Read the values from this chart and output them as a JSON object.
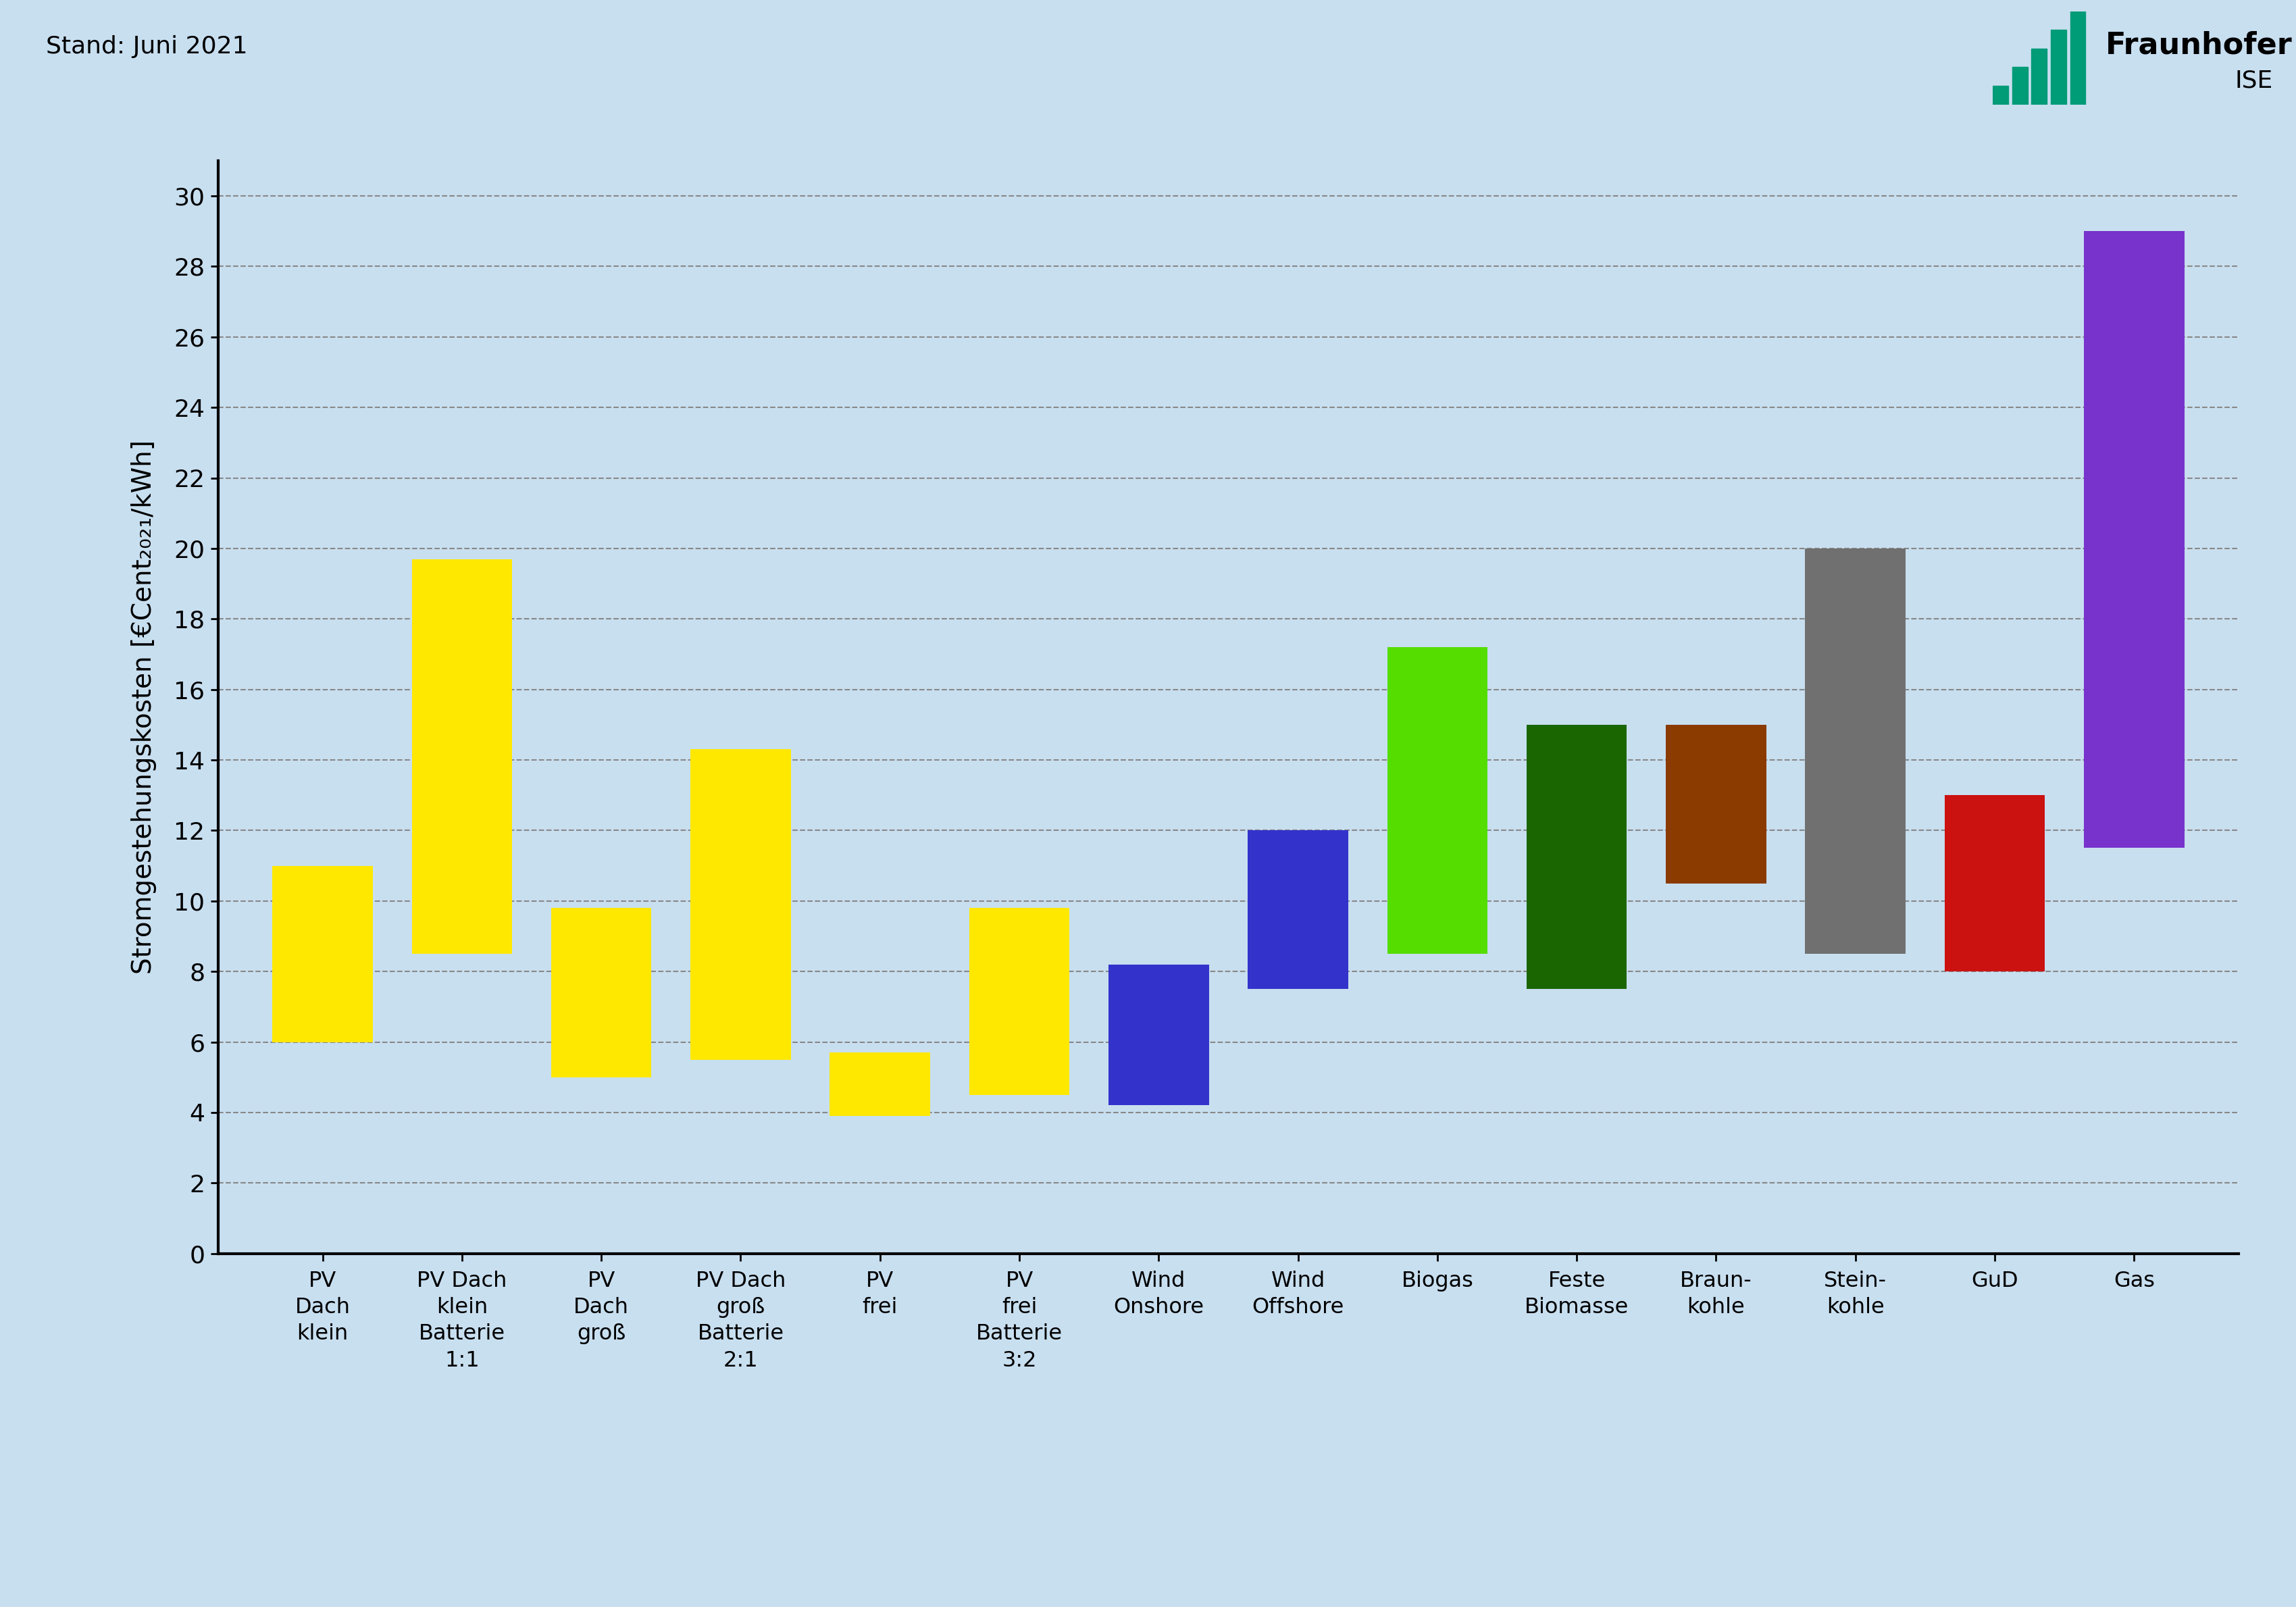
{
  "categories": [
    "PV\nDach\nklein",
    "PV Dach\nklein\nBatterie\n1:1",
    "PV\nDach\ngroß",
    "PV Dach\ngroß\nBatterie\n2:1",
    "PV\nfrei",
    "PV\nfrei\nBatterie\n3:2",
    "Wind\nOnshore",
    "Wind\nOffshore",
    "Biogas",
    "Feste\nBiomasse",
    "Braun-\nkohle",
    "Stein-\nkohle",
    "GuD",
    "Gas"
  ],
  "bar_mins": [
    6.0,
    8.5,
    5.0,
    5.5,
    3.9,
    4.5,
    4.2,
    7.5,
    8.5,
    7.5,
    10.5,
    8.5,
    8.0,
    11.5
  ],
  "bar_maxs": [
    11.0,
    19.7,
    9.8,
    14.3,
    5.7,
    9.8,
    8.2,
    12.0,
    17.2,
    15.0,
    15.0,
    20.0,
    13.0,
    29.0
  ],
  "bar_colors": [
    "#FFE800",
    "#FFE800",
    "#FFE800",
    "#FFE800",
    "#FFE800",
    "#FFE800",
    "#3333CC",
    "#3333CC",
    "#55DD00",
    "#1A6600",
    "#8B3A00",
    "#707070",
    "#CC1111",
    "#7733CC"
  ],
  "ylabel": "Stromgestehungskosten [€Cent₂₀₂₁/kWh]",
  "ylim": [
    0,
    31
  ],
  "yticks": [
    0,
    2,
    4,
    6,
    8,
    10,
    12,
    14,
    16,
    18,
    20,
    22,
    24,
    26,
    28,
    30
  ],
  "background_color": "#C8DFF0",
  "header_text": "Stand: Juni 2021",
  "bar_width": 0.72,
  "ylabel_fontsize": 28,
  "tick_fontsize": 26,
  "label_fontsize": 23,
  "header_fontsize": 26,
  "fraunhofer_fontsize": 32,
  "ise_fontsize": 26
}
